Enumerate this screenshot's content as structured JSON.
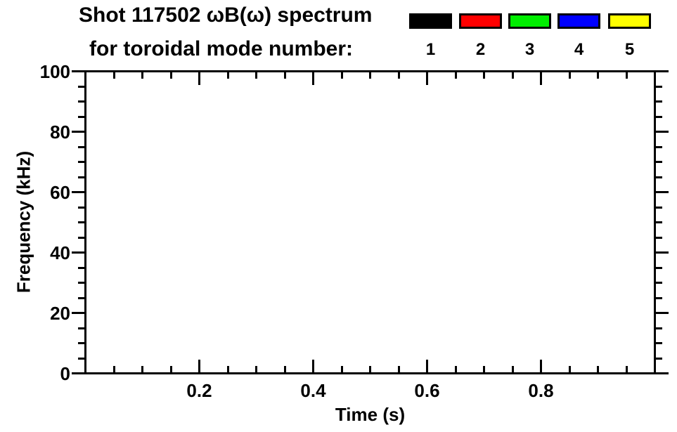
{
  "title": {
    "line1": "Shot 117502 ωB(ω) spectrum",
    "line2": "for toroidal mode number:"
  },
  "legend": {
    "entries": [
      {
        "label": "1",
        "color": "#000000"
      },
      {
        "label": "2",
        "color": "#ff0000"
      },
      {
        "label": "3",
        "color": "#00ee00"
      },
      {
        "label": "4",
        "color": "#0000ff"
      },
      {
        "label": "5",
        "color": "#ffff00"
      }
    ]
  },
  "chart_data": {
    "type": "scatter",
    "title": "Shot 117502 ωB(ω) spectrum for toroidal mode number: 1-5",
    "xlabel": "Time (s)",
    "ylabel": "Frequency (kHz)",
    "xlim": [
      0,
      1.0
    ],
    "ylim": [
      0,
      100
    ],
    "x_ticks": {
      "values": [
        0.2,
        0.4,
        0.6,
        0.8
      ],
      "labels": [
        "0.2",
        "0.4",
        "0.6",
        "0.8"
      ]
    },
    "x_minor_step": 0.05,
    "y_ticks": {
      "values": [
        0,
        20,
        40,
        60,
        80,
        100
      ],
      "labels": [
        "0",
        "20",
        "40",
        "60",
        "80",
        "100"
      ]
    },
    "y_minor_step": 5,
    "grid": "off",
    "legend_position": "top-right",
    "frame_color": "#000000",
    "background_color": "#ffffff",
    "series": []
  }
}
